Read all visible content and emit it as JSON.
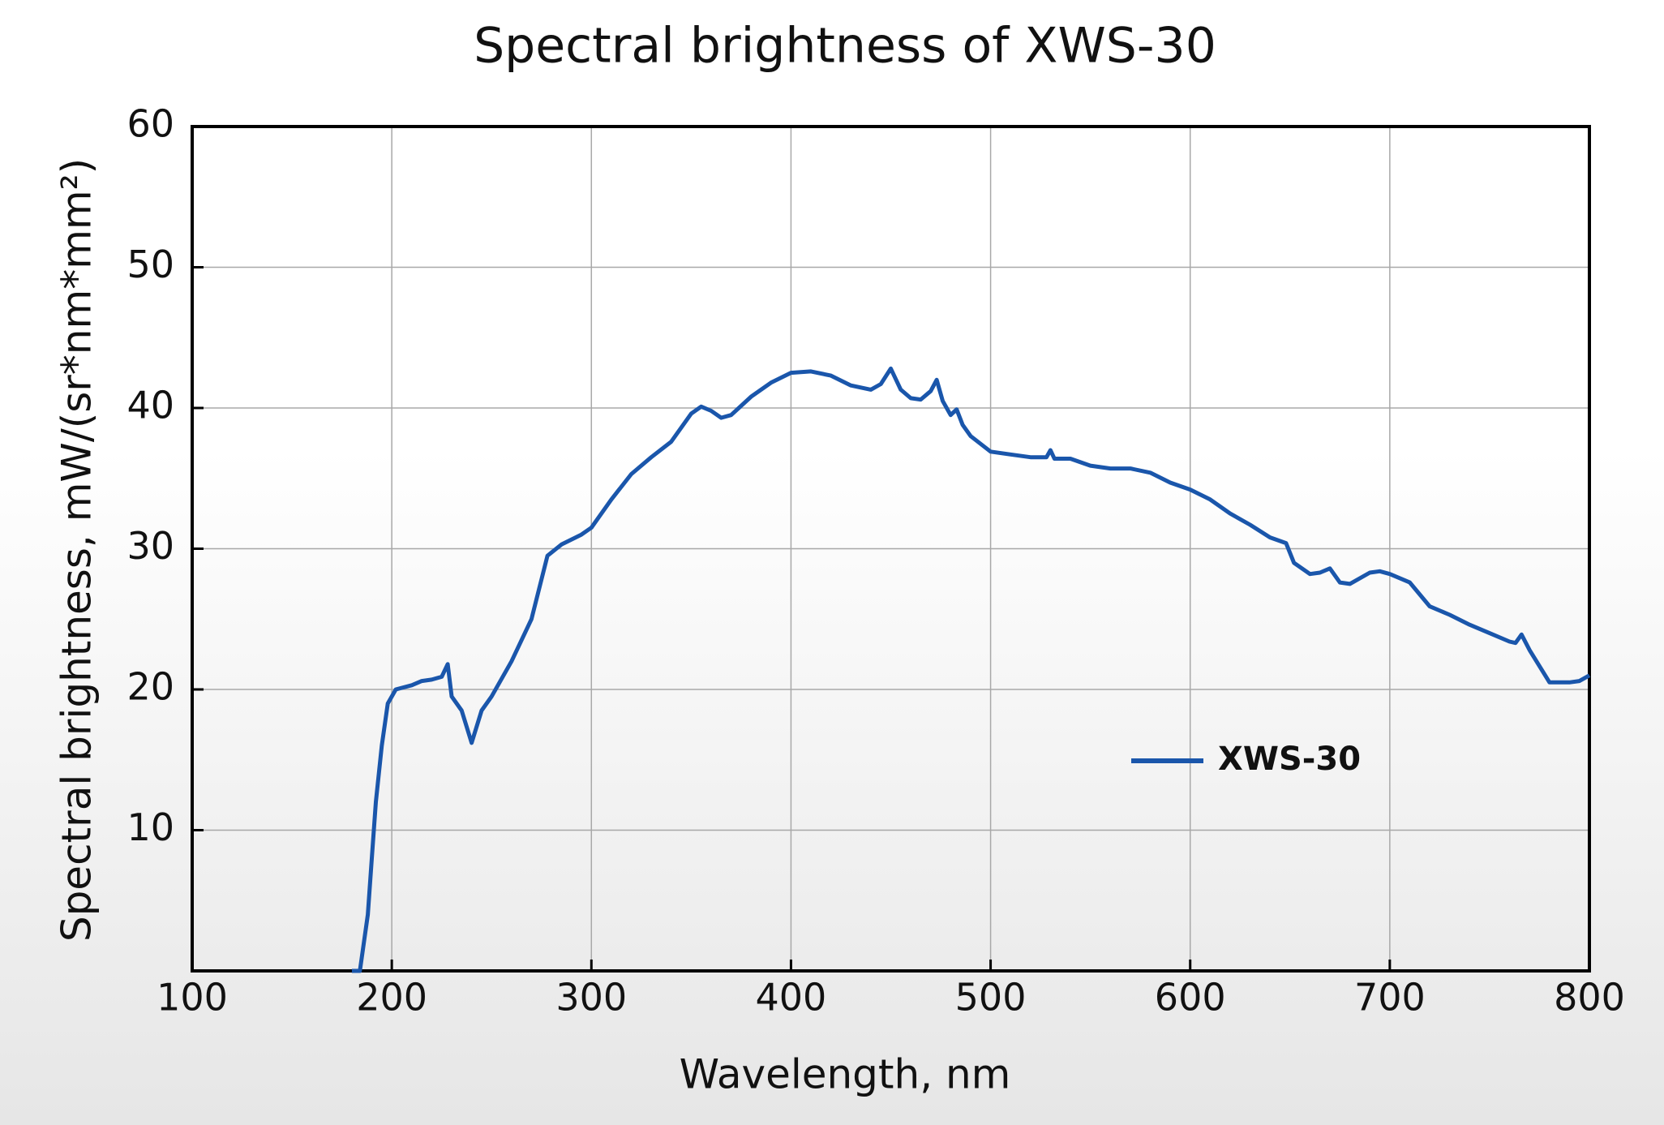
{
  "chart_data": {
    "type": "line",
    "title": "Spectral brightness of XWS-30",
    "x_label": "Wavelength, nm",
    "y_label": "Spectral brightness, mW/(sr*nm*mm²)",
    "xlim": [
      100,
      800
    ],
    "xticks": [
      100,
      200,
      300,
      400,
      500,
      600,
      700,
      800
    ],
    "ylim": [
      0,
      60
    ],
    "yticks": [
      10,
      20,
      30,
      40,
      50,
      60
    ],
    "grid": true,
    "legend": "center-right",
    "series": [
      {
        "name": "XWS-30",
        "color": "#1a56ab",
        "x": [
          180,
          184,
          186,
          188,
          190,
          192,
          195,
          198,
          202,
          210,
          215,
          220,
          225,
          228,
          230,
          235,
          240,
          245,
          250,
          260,
          270,
          278,
          285,
          295,
          300,
          310,
          320,
          330,
          340,
          350,
          355,
          360,
          365,
          370,
          380,
          390,
          400,
          410,
          420,
          430,
          440,
          445,
          450,
          455,
          460,
          465,
          470,
          473,
          476,
          480,
          483,
          486,
          490,
          500,
          510,
          520,
          528,
          530,
          532,
          540,
          550,
          560,
          570,
          580,
          590,
          600,
          610,
          620,
          630,
          640,
          648,
          652,
          660,
          665,
          670,
          675,
          680,
          690,
          695,
          700,
          710,
          720,
          730,
          740,
          750,
          760,
          763,
          766,
          770,
          780,
          790,
          795,
          800
        ],
        "values": [
          0,
          0,
          2,
          4,
          8,
          12,
          16,
          19,
          20,
          20.3,
          20.6,
          20.7,
          20.9,
          21.8,
          19.5,
          18.5,
          16.2,
          18.5,
          19.5,
          22,
          25,
          29.5,
          30.3,
          31,
          31.5,
          33.5,
          35.3,
          36.5,
          37.6,
          39.6,
          40.1,
          39.8,
          39.3,
          39.5,
          40.8,
          41.8,
          42.5,
          42.6,
          42.3,
          41.6,
          41.3,
          41.7,
          42.8,
          41.3,
          40.7,
          40.6,
          41.2,
          42,
          40.5,
          39.5,
          39.9,
          38.8,
          38,
          36.9,
          36.7,
          36.5,
          36.5,
          37,
          36.4,
          36.4,
          35.9,
          35.7,
          35.7,
          35.4,
          34.7,
          34.2,
          33.5,
          32.5,
          31.7,
          30.8,
          30.4,
          29,
          28.2,
          28.3,
          28.6,
          27.6,
          27.5,
          28.3,
          28.4,
          28.2,
          27.6,
          25.9,
          25.3,
          24.6,
          24,
          23.4,
          23.3,
          23.9,
          22.8,
          20.5,
          20.5,
          20.6,
          21
        ]
      }
    ]
  }
}
